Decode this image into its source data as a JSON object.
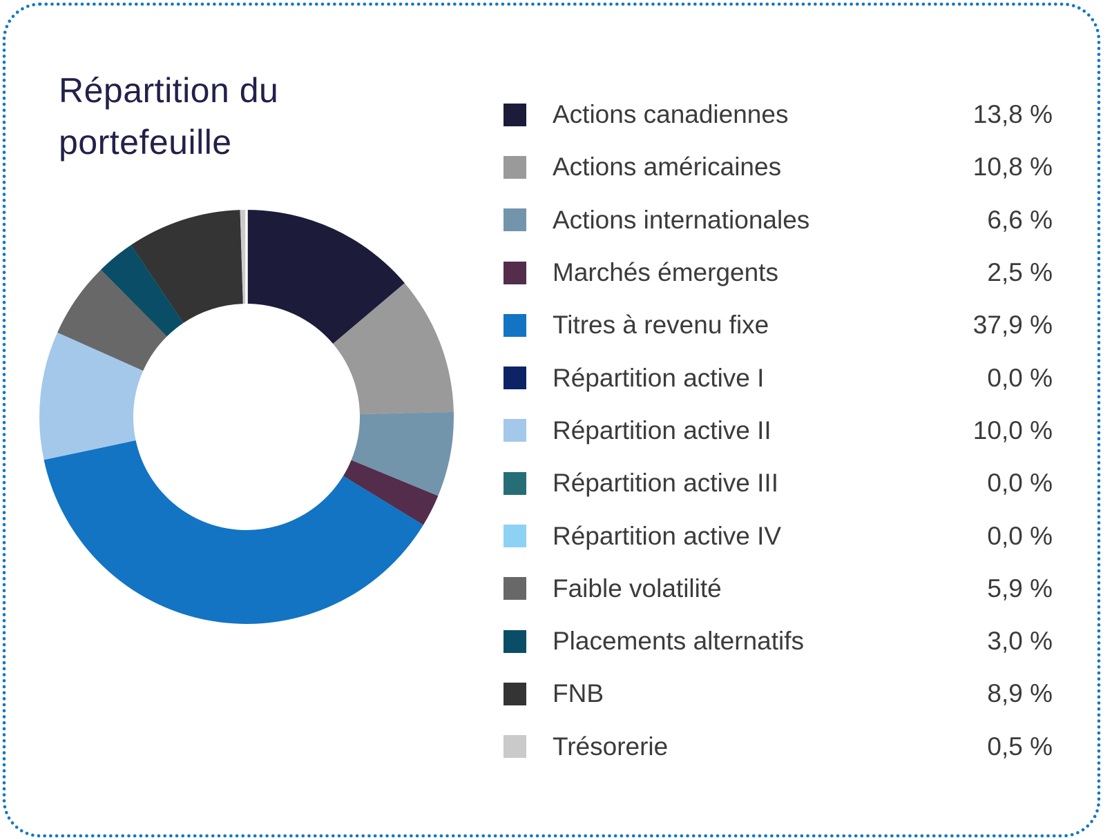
{
  "title": "Répartition du portefeuille",
  "style": {
    "border_accent": "#1277c5",
    "title_color": "#23204a",
    "text_color": "#3b3b3b",
    "background": "#ffffff"
  },
  "chart_data": {
    "type": "pie",
    "variant": "donut",
    "title": "Répartition du portefeuille",
    "start_angle_deg": -90,
    "direction": "clockwise",
    "inner_radius_ratio": 0.545,
    "legend_position": "right",
    "value_format": "comma-decimal percent",
    "items": [
      {
        "label": "Actions canadiennes",
        "value": 13.8,
        "display": "13,8 %",
        "color": "#1c1b3a"
      },
      {
        "label": "Actions américaines",
        "value": 10.8,
        "display": "10,8 %",
        "color": "#9a9a9a"
      },
      {
        "label": "Actions internationales",
        "value": 6.6,
        "display": "6,6 %",
        "color": "#7295ac"
      },
      {
        "label": "Marchés émergents",
        "value": 2.5,
        "display": "2,5 %",
        "color": "#532d4b"
      },
      {
        "label": "Titres à revenu fixe",
        "value": 37.9,
        "display": "37,9 %",
        "color": "#1274c3"
      },
      {
        "label": "Répartition active I",
        "value": 0.0,
        "display": "0,0 %",
        "color": "#0c2366"
      },
      {
        "label": "Répartition active II",
        "value": 10.0,
        "display": "10,0 %",
        "color": "#a4c8ea"
      },
      {
        "label": "Répartition active III",
        "value": 0.0,
        "display": "0,0 %",
        "color": "#266e75"
      },
      {
        "label": "Répartition active IV",
        "value": 0.0,
        "display": "0,0 %",
        "color": "#8dd2f2"
      },
      {
        "label": "Faible volatilité",
        "value": 5.9,
        "display": "5,9 %",
        "color": "#686868"
      },
      {
        "label": "Placements alternatifs",
        "value": 3.0,
        "display": "3,0 %",
        "color": "#094e66"
      },
      {
        "label": "FNB",
        "value": 8.9,
        "display": "8,9 %",
        "color": "#343434"
      },
      {
        "label": "Trésorerie",
        "value": 0.5,
        "display": "0,5 %",
        "color": "#cacaca"
      }
    ]
  }
}
